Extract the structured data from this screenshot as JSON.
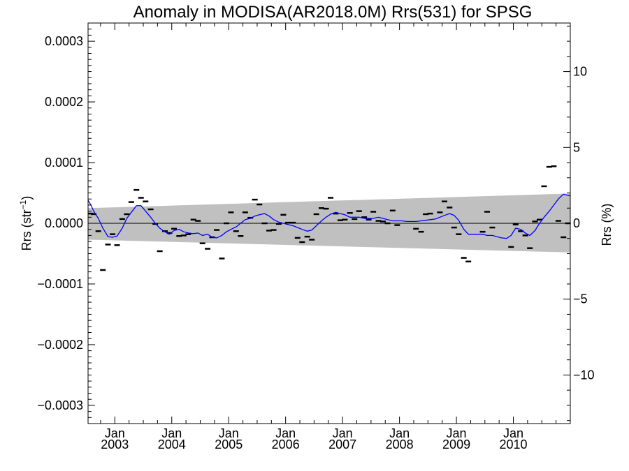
{
  "chart_data": {
    "type": "scatter",
    "title": "Anomaly in MODISA(AR2018.0M) Rrs(531) for SPSG",
    "ylabel_left": {
      "base": "Rrs (str",
      "sup": "−1",
      "close": ")"
    },
    "ylabel_right": "Rrs (%)",
    "xlim": [
      2002.53,
      2011.0
    ],
    "ylim_left": [
      -0.00033,
      0.00033
    ],
    "ylim_right": [
      -13.2,
      13.2
    ],
    "x_ticks": [
      {
        "value": 2003.0,
        "top": "Jan",
        "bottom": "2003"
      },
      {
        "value": 2004.0,
        "top": "Jan",
        "bottom": "2004"
      },
      {
        "value": 2005.0,
        "top": "Jan",
        "bottom": "2005"
      },
      {
        "value": 2006.0,
        "top": "Jan",
        "bottom": "2006"
      },
      {
        "value": 2007.0,
        "top": "Jan",
        "bottom": "2007"
      },
      {
        "value": 2008.0,
        "top": "Jan",
        "bottom": "2008"
      },
      {
        "value": 2009.0,
        "top": "Jan",
        "bottom": "2009"
      },
      {
        "value": 2010.0,
        "top": "Jan",
        "bottom": "2010"
      }
    ],
    "y_ticks_left": [
      {
        "value": 0.0003,
        "label": "0.0003"
      },
      {
        "value": 0.0002,
        "label": "0.0002"
      },
      {
        "value": 0.0001,
        "label": "0.0001"
      },
      {
        "value": 0.0,
        "label": "0.0000"
      },
      {
        "value": -0.0001,
        "label": "−0.0001"
      },
      {
        "value": -0.0002,
        "label": "−0.0002"
      },
      {
        "value": -0.0003,
        "label": "−0.0003"
      }
    ],
    "y_ticks_right": [
      {
        "value": 10,
        "label": "10"
      },
      {
        "value": 5,
        "label": "5"
      },
      {
        "value": 0,
        "label": "0"
      },
      {
        "value": -5,
        "label": "−5"
      },
      {
        "value": -10,
        "label": "−10"
      }
    ],
    "band": {
      "color": "#c0c0c0",
      "upper": [
        [
          2002.53,
          2.5e-05
        ],
        [
          2011.0,
          4.9e-05
        ]
      ],
      "lower": [
        [
          2002.53,
          -2.7e-05
        ],
        [
          2011.0,
          -4.8e-05
        ]
      ]
    },
    "zero_line": 0.0,
    "series": [
      {
        "kind": "monthly-anomaly-markers",
        "color": "#000000",
        "x": [
          2002.58,
          2002.63,
          2002.71,
          2002.79,
          2002.88,
          2002.96,
          2003.04,
          2003.13,
          2003.21,
          2003.29,
          2003.38,
          2003.46,
          2003.54,
          2003.63,
          2003.71,
          2003.79,
          2003.88,
          2003.96,
          2004.04,
          2004.13,
          2004.21,
          2004.29,
          2004.38,
          2004.46,
          2004.54,
          2004.63,
          2004.71,
          2004.79,
          2004.88,
          2004.96,
          2005.04,
          2005.13,
          2005.21,
          2005.29,
          2005.38,
          2005.46,
          2005.54,
          2005.63,
          2005.71,
          2005.79,
          2005.88,
          2005.96,
          2006.04,
          2006.13,
          2006.21,
          2006.29,
          2006.38,
          2006.46,
          2006.54,
          2006.63,
          2006.71,
          2006.79,
          2006.88,
          2006.96,
          2007.04,
          2007.13,
          2007.21,
          2007.29,
          2007.38,
          2007.46,
          2007.54,
          2007.63,
          2007.71,
          2007.79,
          2007.88,
          2007.96,
          2008.29,
          2008.38,
          2008.46,
          2008.54,
          2008.71,
          2008.79,
          2008.88,
          2008.96,
          2009.04,
          2009.13,
          2009.21,
          2009.46,
          2009.54,
          2009.63,
          2009.96,
          2010.04,
          2010.13,
          2010.21,
          2010.29,
          2010.38,
          2010.46,
          2010.54,
          2010.63,
          2010.71,
          2010.79,
          2010.88,
          2010.96
        ],
        "y": [
          1.6e-05,
          1.5e-05,
          -1.3e-05,
          -7.7e-05,
          -3.5e-05,
          -1.8e-05,
          -3.6e-05,
          7e-06,
          1.5e-05,
          3.5e-05,
          5.5e-05,
          4.2e-05,
          3.6e-05,
          2.3e-05,
          -1e-06,
          -4.6e-05,
          -1.3e-05,
          -1.6e-05,
          -9e-06,
          -2.1e-05,
          -2e-05,
          -1.8e-05,
          6e-06,
          4e-06,
          -3.3e-05,
          -4.2e-05,
          -2.3e-05,
          -1.1e-05,
          -5.8e-05,
          0.0,
          1.8e-05,
          -1.3e-05,
          -2.1e-05,
          1.8e-05,
          9e-06,
          3.9e-05,
          3.1e-05,
          0.0,
          -1.2e-05,
          -1.1e-05,
          -1e-06,
          1.4e-05,
          1e-06,
          1e-06,
          -2.4e-05,
          -3.1e-05,
          -2.2e-05,
          -2.7e-05,
          1.5e-05,
          2.5e-05,
          2.4e-05,
          4.2e-05,
          1.6e-05,
          5e-06,
          6e-06,
          1.7e-05,
          7e-06,
          2e-05,
          1e-05,
          6e-06,
          1.9e-05,
          4e-06,
          3e-06,
          0.0,
          2.1e-05,
          -3e-06,
          -9e-06,
          -1.4e-05,
          1.5e-05,
          1.6e-05,
          1.8e-05,
          3.6e-05,
          2.6e-05,
          -7e-06,
          -1.8e-05,
          -5.7e-05,
          -6.3e-05,
          -1.4e-05,
          1.9e-05,
          -7e-06,
          -3.9e-05,
          -2e-06,
          -1.3e-05,
          -2e-05,
          -4.1e-05,
          3e-06,
          6e-06,
          6.1e-05,
          9.3e-05,
          9.4e-05,
          4e-06,
          -2.3e-05,
          0.0
        ]
      },
      {
        "kind": "smoothed-line",
        "color": "#0000ff",
        "x": [
          2002.53,
          2002.58,
          2002.63,
          2002.71,
          2002.79,
          2002.88,
          2002.96,
          2003.04,
          2003.13,
          2003.21,
          2003.29,
          2003.38,
          2003.46,
          2003.54,
          2003.63,
          2003.71,
          2003.79,
          2003.88,
          2003.96,
          2004.04,
          2004.13,
          2004.21,
          2004.29,
          2004.38,
          2004.46,
          2004.54,
          2004.63,
          2004.71,
          2004.79,
          2004.88,
          2004.96,
          2005.04,
          2005.13,
          2005.21,
          2005.29,
          2005.38,
          2005.46,
          2005.54,
          2005.63,
          2005.71,
          2005.79,
          2005.88,
          2005.96,
          2006.04,
          2006.13,
          2006.21,
          2006.29,
          2006.38,
          2006.46,
          2006.54,
          2006.63,
          2006.71,
          2006.79,
          2006.88,
          2006.96,
          2007.04,
          2007.13,
          2007.21,
          2007.29,
          2007.38,
          2007.46,
          2007.54,
          2007.63,
          2007.71,
          2007.79,
          2007.88,
          2007.96,
          2008.04,
          2008.13,
          2008.21,
          2008.29,
          2008.38,
          2008.46,
          2008.54,
          2008.63,
          2008.71,
          2008.79,
          2008.88,
          2008.96,
          2009.04,
          2009.13,
          2009.21,
          2009.29,
          2009.38,
          2009.46,
          2009.54,
          2009.63,
          2009.71,
          2009.79,
          2009.88,
          2009.96,
          2010.04,
          2010.13,
          2010.21,
          2010.29,
          2010.38,
          2010.46,
          2010.54,
          2010.63,
          2010.71,
          2010.79,
          2010.88,
          2010.96,
          2011.0
        ],
        "y": [
          3.8e-05,
          3e-05,
          2e-05,
          8e-06,
          -8e-06,
          -2.2e-05,
          -2.3e-05,
          -2.1e-05,
          -8e-06,
          8e-06,
          1.8e-05,
          2.9e-05,
          2.9e-05,
          2e-05,
          1e-05,
          0.0,
          -8e-06,
          -1.4e-05,
          -1.8e-05,
          -1.2e-05,
          -1e-05,
          -1.4e-05,
          -1.6e-05,
          -1.7e-05,
          -1.6e-05,
          -2e-05,
          -1.8e-05,
          -2.3e-05,
          -2.4e-05,
          -2e-05,
          -1.4e-05,
          -1e-05,
          -6e-06,
          0.0,
          6e-06,
          8e-06,
          1.2e-05,
          1.4e-05,
          1.6e-05,
          1.2e-05,
          6e-06,
          2e-06,
          0.0,
          -2e-06,
          -4e-06,
          -7e-06,
          -1e-05,
          -1.3e-05,
          -1.1e-05,
          -4e-06,
          4e-06,
          1e-05,
          1.5e-05,
          1.8e-05,
          1.6e-05,
          1.4e-05,
          1e-05,
          1e-05,
          1e-05,
          8e-06,
          8e-06,
          8e-06,
          1e-05,
          8e-06,
          6e-06,
          4e-06,
          4e-06,
          4e-06,
          3e-06,
          3e-06,
          3e-06,
          4e-06,
          5e-06,
          6e-06,
          7e-06,
          1e-05,
          1.3e-05,
          1.6e-05,
          1.3e-05,
          5e-06,
          -1e-05,
          -1.8e-05,
          -1.8e-05,
          -1.8e-05,
          -1.8e-05,
          -2e-05,
          -2e-05,
          -2.2e-05,
          -2.4e-05,
          -2.5e-05,
          -2e-05,
          -8e-06,
          -1e-05,
          -1.6e-05,
          -2e-05,
          -1.2e-05,
          0.0,
          1e-05,
          2e-05,
          3e-05,
          4e-05,
          4.8e-05,
          4.6e-05,
          4.5e-05
        ]
      }
    ]
  }
}
